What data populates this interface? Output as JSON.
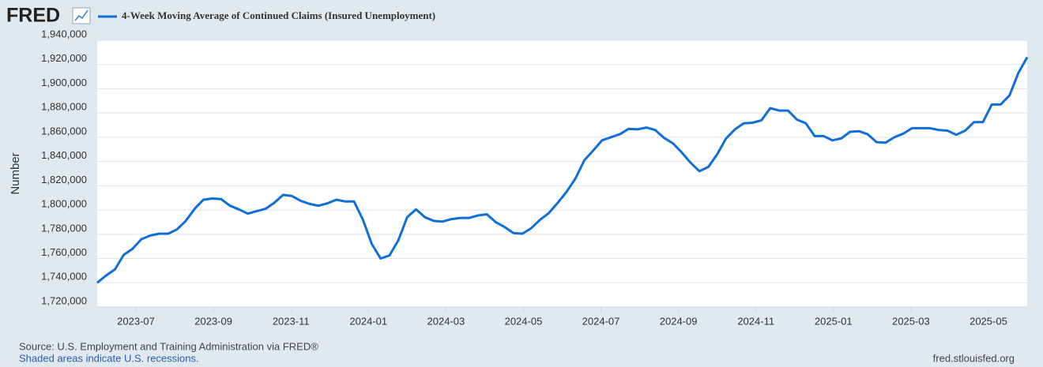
{
  "logo": "FRED",
  "chart_data": {
    "type": "line",
    "series": [
      {
        "name": "4-Week Moving Average of Continued Claims (Insured Unemployment)",
        "color": "#0e6fd9",
        "values": [
          1740000,
          1746000,
          1751000,
          1763000,
          1768000,
          1776000,
          1779000,
          1780500,
          1780500,
          1784000,
          1791000,
          1801000,
          1808500,
          1809500,
          1809000,
          1803500,
          1800500,
          1797000,
          1799000,
          1801000,
          1806000,
          1812500,
          1811500,
          1807500,
          1805000,
          1803500,
          1805500,
          1808500,
          1807000,
          1807000,
          1792000,
          1772000,
          1760000,
          1762500,
          1775000,
          1794000,
          1800500,
          1794000,
          1791000,
          1790500,
          1792500,
          1793500,
          1793500,
          1795500,
          1796500,
          1790000,
          1786000,
          1781000,
          1780500,
          1785000,
          1792000,
          1797500,
          1806000,
          1815000,
          1826000,
          1841000,
          1849000,
          1857500,
          1860000,
          1862500,
          1867000,
          1866500,
          1868000,
          1866000,
          1859500,
          1855000,
          1847500,
          1839000,
          1832000,
          1835500,
          1846000,
          1859000,
          1866500,
          1871500,
          1872000,
          1874000,
          1884000,
          1882000,
          1882000,
          1874500,
          1871500,
          1861000,
          1861000,
          1857500,
          1859000,
          1864500,
          1865000,
          1862500,
          1856000,
          1855500,
          1860000,
          1863000,
          1867500,
          1867500,
          1867500,
          1866000,
          1865500,
          1862000,
          1865500,
          1872500,
          1872500,
          1887000,
          1887000,
          1894500,
          1913000,
          1926000
        ]
      }
    ],
    "y_label": "Number",
    "ylim": [
      1720000,
      1940000
    ],
    "yticks": [
      {
        "value": 1720000,
        "label": "1,720,000"
      },
      {
        "value": 1740000,
        "label": "1,740,000"
      },
      {
        "value": 1760000,
        "label": "1,760,000"
      },
      {
        "value": 1780000,
        "label": "1,780,000"
      },
      {
        "value": 1800000,
        "label": "1,800,000"
      },
      {
        "value": 1820000,
        "label": "1,820,000"
      },
      {
        "value": 1840000,
        "label": "1,840,000"
      },
      {
        "value": 1860000,
        "label": "1,860,000"
      },
      {
        "value": 1880000,
        "label": "1,880,000"
      },
      {
        "value": 1900000,
        "label": "1,900,000"
      },
      {
        "value": 1920000,
        "label": "1,920,000"
      },
      {
        "value": 1940000,
        "label": "1,940,000"
      }
    ],
    "xlim": [
      "2023-06",
      "2025-06"
    ],
    "xticks": [
      "2023-07",
      "2023-09",
      "2023-11",
      "2024-01",
      "2024-03",
      "2024-05",
      "2024-07",
      "2024-09",
      "2024-11",
      "2025-01",
      "2025-03",
      "2025-05"
    ],
    "grid": true,
    "source": "Source: U.S. Employment and Training Administration via FRED®",
    "note": "Shaded areas indicate U.S. recessions.",
    "credit": "fred.stlouisfed.org"
  }
}
